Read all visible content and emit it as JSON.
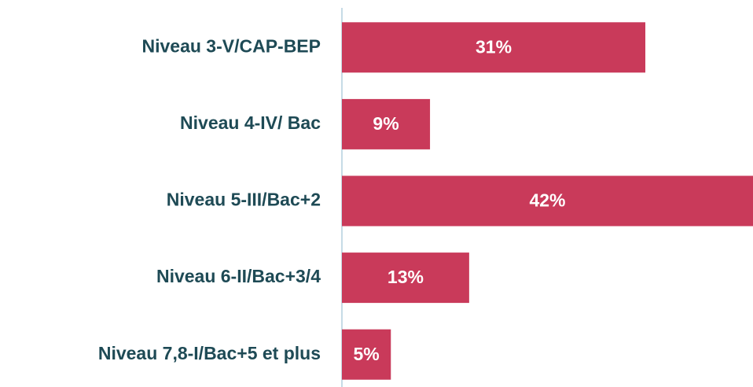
{
  "chart_data": {
    "type": "barh",
    "categories": [
      "Niveau 3-V/CAP-BEP",
      "Niveau 4-IV/ Bac",
      "Niveau 5-III/Bac+2",
      "Niveau 6-II/Bac+3/4",
      "Niveau 7,8-I/Bac+5 et plus"
    ],
    "values": [
      31,
      9,
      42,
      13,
      5
    ],
    "value_labels": [
      "31%",
      "9%",
      "42%",
      "13%",
      "5%"
    ],
    "color": "#c93a5a",
    "xlim": [
      0,
      42
    ]
  }
}
